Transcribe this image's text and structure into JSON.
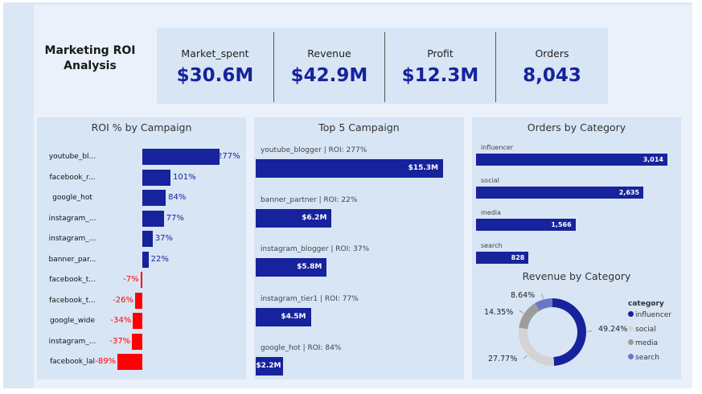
{
  "header": {
    "title": "Marketing  ROI\nAnalysis"
  },
  "kpis": [
    {
      "label": "Market_spent",
      "value": "$30.6M"
    },
    {
      "label": "Revenue",
      "value": "$42.9M"
    },
    {
      "label": "Profit",
      "value": "$12.3M"
    },
    {
      "label": "Orders",
      "value": "8,043"
    }
  ],
  "roi_panel": {
    "title": "ROI % by Campaign",
    "rows": [
      {
        "label": "youtube_bl...",
        "value": 277,
        "text": "277%"
      },
      {
        "label": "facebook_r...",
        "value": 101,
        "text": "101%"
      },
      {
        "label": "google_hot",
        "value": 84,
        "text": "84%"
      },
      {
        "label": "instagram_...",
        "value": 77,
        "text": "77%"
      },
      {
        "label": "instagram_...",
        "value": 37,
        "text": "37%"
      },
      {
        "label": "banner_par...",
        "value": 22,
        "text": "22%"
      },
      {
        "label": "facebook_t...",
        "value": -7,
        "text": "-7%"
      },
      {
        "label": "facebook_t...",
        "value": -26,
        "text": "-26%"
      },
      {
        "label": "google_wide",
        "value": -34,
        "text": "-34%"
      },
      {
        "label": "instagram_...",
        "value": -37,
        "text": "-37%"
      },
      {
        "label": "facebook_lal",
        "value": -89,
        "text": "-89%"
      }
    ]
  },
  "top5_panel": {
    "title": "Top 5 Campaign",
    "rows": [
      {
        "label": "youtube_blogger | ROI: 277%",
        "value": 15.3,
        "text": "$15.3M"
      },
      {
        "label": "banner_partner | ROI: 22%",
        "value": 6.2,
        "text": "$6.2M"
      },
      {
        "label": "instagram_blogger | ROI: 37%",
        "value": 5.8,
        "text": "$5.8M"
      },
      {
        "label": "instagram_tier1 | ROI: 77%",
        "value": 4.5,
        "text": "$4.5M"
      },
      {
        "label": "google_hot | ROI: 84%",
        "value": 2.2,
        "text": "$2.2M"
      }
    ]
  },
  "orders_panel": {
    "title": "Orders by Category",
    "rows": [
      {
        "label": "influencer",
        "value": 3014,
        "text": "3,014"
      },
      {
        "label": "social",
        "value": 2635,
        "text": "2,635"
      },
      {
        "label": "media",
        "value": 1566,
        "text": "1,566"
      },
      {
        "label": "search",
        "value": 828,
        "text": "828"
      }
    ]
  },
  "revenue_panel": {
    "title": "Revenue by Category",
    "legend_title": "category",
    "slices": [
      {
        "label": "influencer",
        "value": 49.24,
        "text": "49.24%",
        "color": "#16239c"
      },
      {
        "label": "social",
        "value": 27.77,
        "text": "27.77%",
        "color": "#d4d4d4"
      },
      {
        "label": "media",
        "value": 14.35,
        "text": "14.35%",
        "color": "#9c9c9c"
      },
      {
        "label": "search",
        "value": 8.64,
        "text": "8.64%",
        "color": "#6b76c9"
      }
    ]
  },
  "colors": {
    "positive": "#16239c",
    "negative": "#ff0000",
    "accent": "#16239c"
  },
  "chart_data": [
    {
      "type": "bar",
      "title": "ROI % by Campaign",
      "categories": [
        "youtube_bl...",
        "facebook_r...",
        "google_hot",
        "instagram_...",
        "instagram_...",
        "banner_par...",
        "facebook_t...",
        "facebook_t...",
        "google_wide",
        "instagram_...",
        "facebook_lal"
      ],
      "values": [
        277,
        101,
        84,
        77,
        37,
        22,
        -7,
        -26,
        -34,
        -37,
        -89
      ]
    },
    {
      "type": "bar",
      "title": "Top 5 Campaign",
      "categories": [
        "youtube_blogger | ROI: 277%",
        "banner_partner | ROI: 22%",
        "instagram_blogger | ROI: 37%",
        "instagram_tier1 | ROI: 77%",
        "google_hot | ROI: 84%"
      ],
      "values": [
        15.3,
        6.2,
        5.8,
        4.5,
        2.2
      ]
    },
    {
      "type": "bar",
      "title": "Orders by Category",
      "categories": [
        "influencer",
        "social",
        "media",
        "search"
      ],
      "values": [
        3014,
        2635,
        1566,
        828
      ]
    },
    {
      "type": "pie",
      "title": "Revenue by Category",
      "categories": [
        "influencer",
        "social",
        "media",
        "search"
      ],
      "values": [
        49.24,
        27.77,
        14.35,
        8.64
      ],
      "legend": "right"
    }
  ]
}
